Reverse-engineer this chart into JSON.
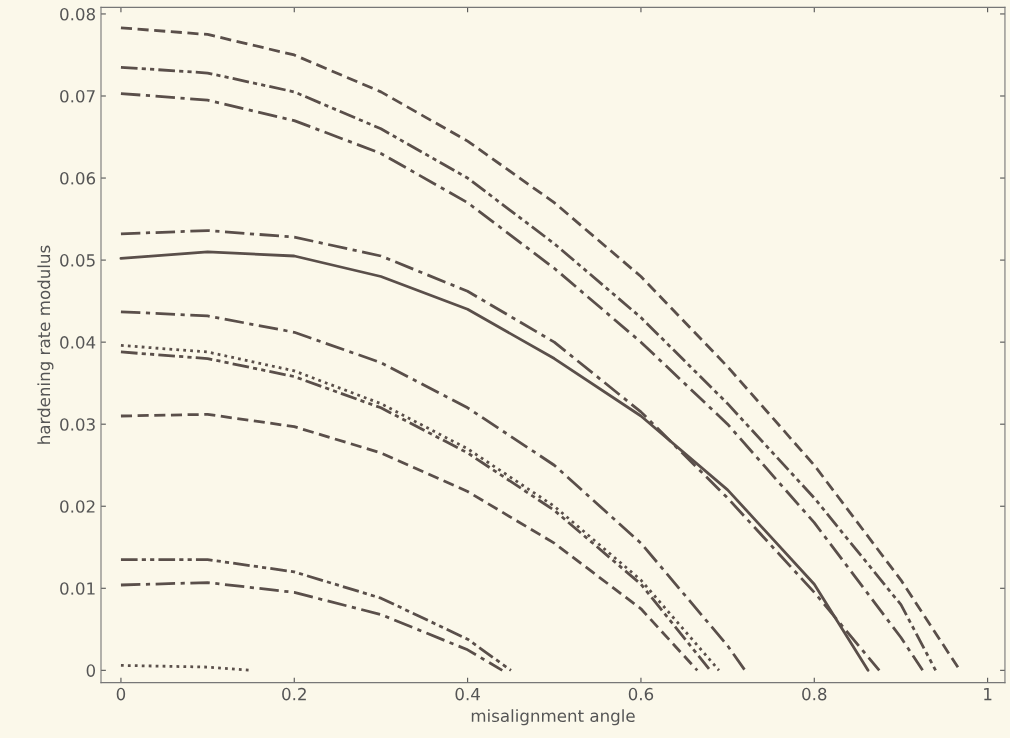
{
  "chart_data": {
    "type": "line",
    "xlabel": "misalignment angle",
    "ylabel": "hardening rate modulus",
    "xlim": [
      -0.023,
      1.02
    ],
    "ylim": [
      -0.0015,
      0.0808
    ],
    "xticks": [
      0,
      0.2,
      0.4,
      0.6,
      0.8,
      1
    ],
    "yticks": [
      0,
      0.01,
      0.02,
      0.03,
      0.04,
      0.05,
      0.06,
      0.07,
      0.08
    ],
    "grid": false,
    "marker": "none",
    "series": [
      {
        "color": "#5a4f4a",
        "line_style": "dashed",
        "x": [
          0,
          0.1,
          0.2,
          0.3,
          0.4,
          0.5,
          0.6,
          0.7,
          0.8,
          0.9,
          0.968
        ],
        "values": [
          0.0783,
          0.0775,
          0.075,
          0.0705,
          0.0645,
          0.057,
          0.048,
          0.037,
          0.025,
          0.011,
          0
        ]
      },
      {
        "color": "#5a4f4a",
        "line_style": "dashdotdot",
        "x": [
          0,
          0.1,
          0.2,
          0.3,
          0.4,
          0.5,
          0.6,
          0.7,
          0.8,
          0.9,
          0.94
        ],
        "values": [
          0.0735,
          0.0728,
          0.0705,
          0.066,
          0.06,
          0.052,
          0.043,
          0.0325,
          0.021,
          0.008,
          0
        ]
      },
      {
        "color": "#5a4f4a",
        "line_style": "dashdot",
        "x": [
          0,
          0.1,
          0.2,
          0.3,
          0.4,
          0.5,
          0.6,
          0.7,
          0.8,
          0.9,
          0.925
        ],
        "values": [
          0.0703,
          0.0695,
          0.067,
          0.063,
          0.057,
          0.049,
          0.04,
          0.03,
          0.018,
          0.004,
          0
        ]
      },
      {
        "color": "#5a4f4a",
        "line_style": "dashdot",
        "x": [
          0,
          0.1,
          0.2,
          0.3,
          0.4,
          0.5,
          0.6,
          0.7,
          0.8,
          0.875
        ],
        "values": [
          0.0532,
          0.0536,
          0.0528,
          0.0505,
          0.0462,
          0.04,
          0.0315,
          0.021,
          0.0095,
          0
        ]
      },
      {
        "color": "#5a4f4a",
        "line_style": "solid",
        "x": [
          0,
          0.1,
          0.2,
          0.3,
          0.4,
          0.5,
          0.6,
          0.7,
          0.8,
          0.862
        ],
        "values": [
          0.0502,
          0.051,
          0.0505,
          0.048,
          0.044,
          0.038,
          0.031,
          0.022,
          0.0105,
          0
        ]
      },
      {
        "color": "#5a4f4a",
        "line_style": "dashdot",
        "x": [
          0,
          0.1,
          0.2,
          0.3,
          0.4,
          0.5,
          0.6,
          0.7,
          0.72
        ],
        "values": [
          0.0437,
          0.0432,
          0.0412,
          0.0375,
          0.032,
          0.025,
          0.0155,
          0.003,
          0
        ]
      },
      {
        "color": "#5a4f4a",
        "line_style": "dotted",
        "x": [
          0,
          0.1,
          0.2,
          0.3,
          0.4,
          0.5,
          0.6,
          0.69
        ],
        "values": [
          0.0396,
          0.0388,
          0.0365,
          0.0325,
          0.027,
          0.02,
          0.011,
          0
        ]
      },
      {
        "color": "#5a4f4a",
        "line_style": "dashdotdot",
        "x": [
          0,
          0.1,
          0.2,
          0.3,
          0.4,
          0.5,
          0.6,
          0.68
        ],
        "values": [
          0.0388,
          0.038,
          0.0358,
          0.032,
          0.0265,
          0.0195,
          0.0105,
          0
        ]
      },
      {
        "color": "#5a4f4a",
        "line_style": "dashed",
        "x": [
          0,
          0.1,
          0.2,
          0.3,
          0.4,
          0.5,
          0.6,
          0.665
        ],
        "values": [
          0.031,
          0.0312,
          0.0297,
          0.0265,
          0.0218,
          0.0155,
          0.0075,
          0
        ]
      },
      {
        "color": "#5a4f4a",
        "line_style": "dashdotdot",
        "x": [
          0,
          0.1,
          0.2,
          0.3,
          0.4,
          0.45
        ],
        "values": [
          0.0135,
          0.0135,
          0.012,
          0.0088,
          0.0038,
          0
        ]
      },
      {
        "color": "#5a4f4a",
        "line_style": "dashdot",
        "x": [
          0,
          0.1,
          0.2,
          0.3,
          0.4,
          0.44
        ],
        "values": [
          0.0104,
          0.0107,
          0.0095,
          0.0068,
          0.0025,
          0
        ]
      },
      {
        "color": "#5a4f4a",
        "line_style": "dotted",
        "x": [
          0,
          0.1,
          0.15
        ],
        "values": [
          0.0006,
          0.0004,
          0
        ]
      }
    ]
  }
}
